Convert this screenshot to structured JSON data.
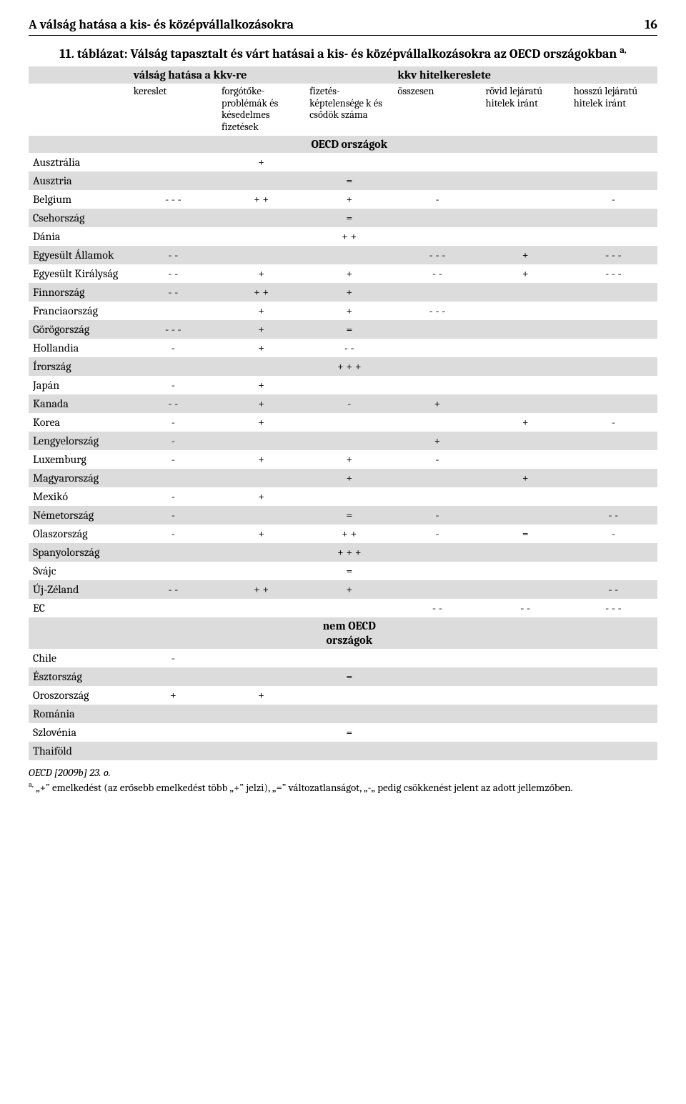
{
  "header": {
    "title_left": "A válság hatása a kis- és középvállalkozásokra",
    "page_num": "16"
  },
  "table_title_prefix": "11. táblázat:",
  "table_title_body": " Válság tapasztalt és várt hatásai a kis- és középvállalkozásokra az OECD országokban ",
  "table_title_sup": "a,",
  "group_headers": {
    "left": "válság hatása a kkv-re",
    "right": "kkv hitelkereslete"
  },
  "col_headers": {
    "c0": "",
    "c1": "kereslet",
    "c2": "forgótőke-problémák és késedelmes fizetések",
    "c3": "fizetés-képtelensége k és csődök száma",
    "c4": "összesen",
    "c5": "rövid lejáratú hitelek iránt",
    "c6": "hosszú lejáratú hitelek iránt"
  },
  "section_labels": {
    "oecd": "OECD országok",
    "non_oecd": "nem OECD országok"
  },
  "rows_oecd": [
    {
      "country": "Ausztrália",
      "v": [
        "",
        "+",
        "",
        "",
        "",
        ""
      ]
    },
    {
      "country": "Ausztria",
      "v": [
        "",
        "",
        "=",
        "",
        "",
        ""
      ]
    },
    {
      "country": "Belgium",
      "v": [
        "- - -",
        "+ +",
        "+",
        "-",
        "",
        "-"
      ]
    },
    {
      "country": "Csehország",
      "v": [
        "",
        "",
        "=",
        "",
        "",
        ""
      ]
    },
    {
      "country": "Dánia",
      "v": [
        "",
        "",
        "+ +",
        "",
        "",
        ""
      ]
    },
    {
      "country": "Egyesült Államok",
      "v": [
        "- -",
        "",
        "",
        "- - -",
        "+",
        "- - -"
      ]
    },
    {
      "country": "Egyesült Királyság",
      "v": [
        "- -",
        "+",
        "+",
        "- -",
        "+",
        "- - -"
      ]
    },
    {
      "country": "Finnország",
      "v": [
        "- -",
        "+ +",
        "+",
        "",
        "",
        ""
      ]
    },
    {
      "country": "Franciaország",
      "v": [
        "",
        "+",
        "+",
        "- - -",
        "",
        ""
      ]
    },
    {
      "country": "Görögország",
      "v": [
        "- - -",
        "+",
        "=",
        "",
        "",
        ""
      ]
    },
    {
      "country": "Hollandia",
      "v": [
        "-",
        "+",
        "- -",
        "",
        "",
        ""
      ]
    },
    {
      "country": "Írország",
      "v": [
        "",
        "",
        "+ + +",
        "",
        "",
        ""
      ]
    },
    {
      "country": "Japán",
      "v": [
        "-",
        "+",
        "",
        "",
        "",
        ""
      ]
    },
    {
      "country": "Kanada",
      "v": [
        "- -",
        "+",
        "-",
        "+",
        "",
        ""
      ]
    },
    {
      "country": "Korea",
      "v": [
        "-",
        "+",
        "",
        "",
        "+",
        "-"
      ]
    },
    {
      "country": "Lengyelország",
      "v": [
        "-",
        "",
        "",
        "+",
        "",
        ""
      ]
    },
    {
      "country": "Luxemburg",
      "v": [
        "-",
        "+",
        "+",
        "-",
        "",
        ""
      ]
    },
    {
      "country": "Magyarország",
      "v": [
        "",
        "",
        "+",
        "",
        "+",
        ""
      ]
    },
    {
      "country": "Mexikó",
      "v": [
        "-",
        "+",
        "",
        "",
        "",
        ""
      ]
    },
    {
      "country": "Németország",
      "v": [
        "-",
        "",
        "=",
        "-",
        "",
        "- -"
      ]
    },
    {
      "country": "Olaszország",
      "v": [
        "-",
        "+",
        "+ +",
        "-",
        "=",
        "-"
      ]
    },
    {
      "country": "Spanyolország",
      "v": [
        "",
        "",
        "+ + +",
        "",
        "",
        ""
      ]
    },
    {
      "country": "Svájc",
      "v": [
        "",
        "",
        "=",
        "",
        "",
        ""
      ]
    },
    {
      "country": "Új-Zéland",
      "v": [
        "- -",
        "+ +",
        "+",
        "",
        "",
        "- -"
      ]
    },
    {
      "country": "EC",
      "v": [
        "",
        "",
        "",
        "- -",
        "- -",
        "- - -"
      ]
    }
  ],
  "rows_non_oecd": [
    {
      "country": "Chile",
      "v": [
        "-",
        "",
        "",
        "",
        "",
        ""
      ]
    },
    {
      "country": "Észtország",
      "v": [
        "",
        "",
        "=",
        "",
        "",
        ""
      ]
    },
    {
      "country": "Oroszország",
      "v": [
        "+",
        "+",
        "",
        "",
        "",
        ""
      ]
    },
    {
      "country": "Románia",
      "v": [
        "",
        "",
        "",
        "",
        "",
        ""
      ]
    },
    {
      "country": "Szlovénia",
      "v": [
        "",
        "",
        "=",
        "",
        "",
        ""
      ]
    },
    {
      "country": "Thaiföld",
      "v": [
        "",
        "",
        "",
        "",
        "",
        ""
      ]
    }
  ],
  "source_line": "OECD [2009b] 23. o.",
  "footnote_sup": "a,",
  "footnote_text": " „+” emelkedést (az erősebb emelkedést több „+” jelzi), „=” változatlanságot, „-„ pedig csökkenést jelent az adott jellemzőben.",
  "colors": {
    "band": "#dcdcdc",
    "text": "#000000",
    "bg": "#ffffff"
  }
}
